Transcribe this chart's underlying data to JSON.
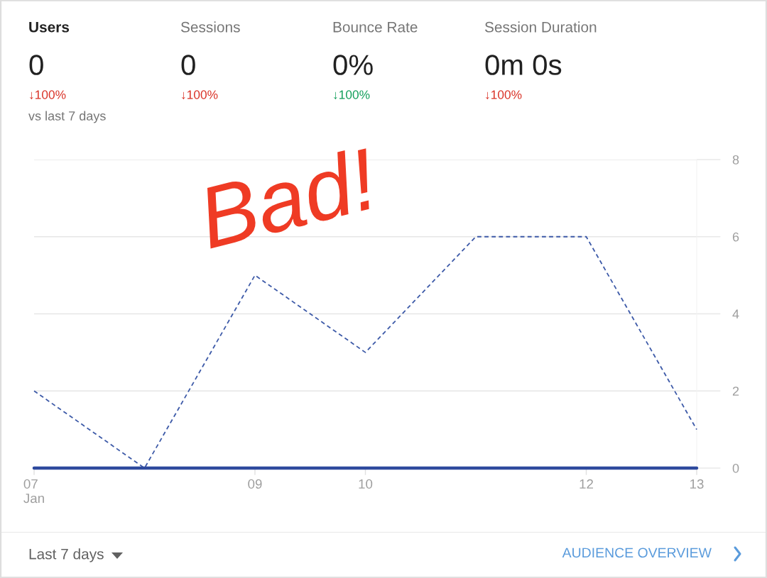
{
  "chart_data": [
    {
      "type": "other",
      "categories": [
        "Users",
        "Sessions",
        "Bounce Rate",
        "Session Duration"
      ],
      "value_labels": [
        "0",
        "0",
        "0%",
        "0m 0s"
      ],
      "annotations": [
        "↓100%",
        "↓100%",
        "↓100%",
        "↓100%",
        "vs last 7 days"
      ],
      "colors": [
        "#d93025",
        "#d93025",
        "#0f9d58",
        "#d93025"
      ]
    },
    {
      "type": "line",
      "categories": [
        "07\nJan",
        null,
        "09",
        "10",
        null,
        "12",
        "13"
      ],
      "series": [
        {
          "color": "#3d5aa8",
          "line_style": "dashed",
          "values": [
            2,
            0,
            5,
            3,
            6,
            6,
            1
          ]
        },
        {
          "color": "#2e4a9e",
          "line_style": "solid",
          "values": [
            0,
            0,
            0,
            0,
            0,
            0,
            0
          ]
        }
      ],
      "ylim": [
        0,
        8
      ],
      "yticks": [
        0,
        2,
        4,
        6,
        8
      ],
      "grid": "y",
      "annotations": [
        "Bad!"
      ]
    },
    {
      "type": "other",
      "annotations": [
        "Last 7 days",
        "AUDIENCE OVERVIEW"
      ]
    }
  ]
}
